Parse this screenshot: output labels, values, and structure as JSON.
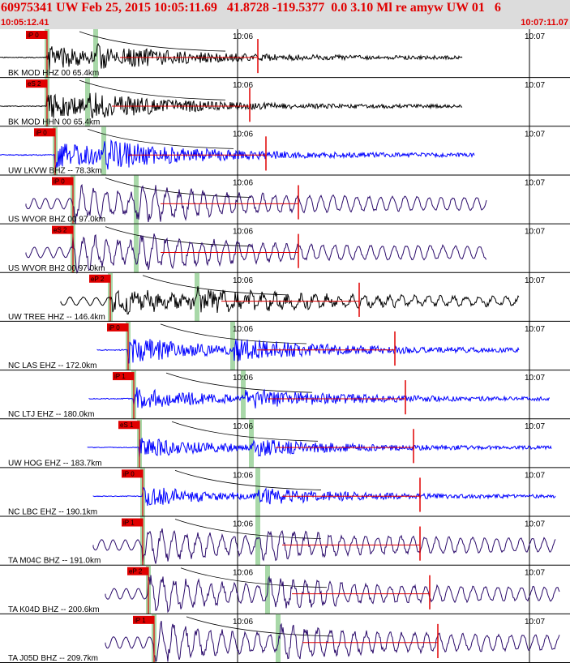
{
  "header": {
    "title": "60975341 UW Feb 25, 2015 10:05:11.69   41.8728 -119.5377  0.0 3.10 Ml re amyw UW 01   6",
    "start_time": "10:05:12.41",
    "end_time": "10:07:11.07"
  },
  "colors": {
    "header_bg": "#dcdcdc",
    "header_text": "#e00000",
    "pick": "#e00000",
    "pick_band": "#a8d8a8",
    "synthetic_curve": "#000000"
  },
  "chart_data": {
    "type": "line",
    "title": "60975341 UW Feb 25, 2015 10:05:11.69   41.8728 -119.5377  0.0 3.10 Ml re amyw UW 01   6",
    "x_range": [
      "10:05:12.41",
      "10:07:11.07"
    ],
    "x_ticks": [
      "10:06",
      "10:07"
    ],
    "traces": [
      {
        "label": "BK MOD HHZ 00 65.4km",
        "pick": "iP 0",
        "color": "#000000",
        "seed": 11
      },
      {
        "label": "BK MOD HHN 00 65.4km",
        "pick": "eS 2",
        "color": "#000000",
        "seed": 23
      },
      {
        "label": "UW LKVW BHZ -- 78.3km",
        "pick": "iP 0",
        "color": "#0000ff",
        "seed": 37
      },
      {
        "label": "US WVOR BHZ 00 97.0km",
        "pick": "iP 0",
        "color": "#2a0a6a",
        "seed": 41
      },
      {
        "label": "US WVOR BH2 00 97.0km",
        "pick": "eS 2",
        "color": "#2a0a6a",
        "seed": 53
      },
      {
        "label": "UW TREE HHZ -- 146.4km",
        "pick": "eP 2",
        "color": "#000000",
        "seed": 67
      },
      {
        "label": "NC LAS EHZ -- 172.0km",
        "pick": "iP 0",
        "color": "#0000ff",
        "seed": 71
      },
      {
        "label": "NC LTJ EHZ -- 180.0km",
        "pick": "iP 1",
        "color": "#0000ff",
        "seed": 83
      },
      {
        "label": "UW HOG EHZ -- 183.7km",
        "pick": "eS 1",
        "color": "#0000ff",
        "seed": 97
      },
      {
        "label": "NC LBC EHZ -- 190.1km",
        "pick": "iP 0",
        "color": "#0000ff",
        "seed": 101
      },
      {
        "label": "TA M04C BHZ -- 191.0km",
        "pick": "iP 1",
        "color": "#2a0a6a",
        "seed": 113
      },
      {
        "label": "TA K04D BHZ -- 200.6km",
        "pick": "eP 2",
        "color": "#2a0a6a",
        "seed": 127
      },
      {
        "label": "TA J05D BHZ -- 209.7km",
        "pick": "iP 1",
        "color": "#2a0a6a",
        "seed": 131
      }
    ]
  }
}
